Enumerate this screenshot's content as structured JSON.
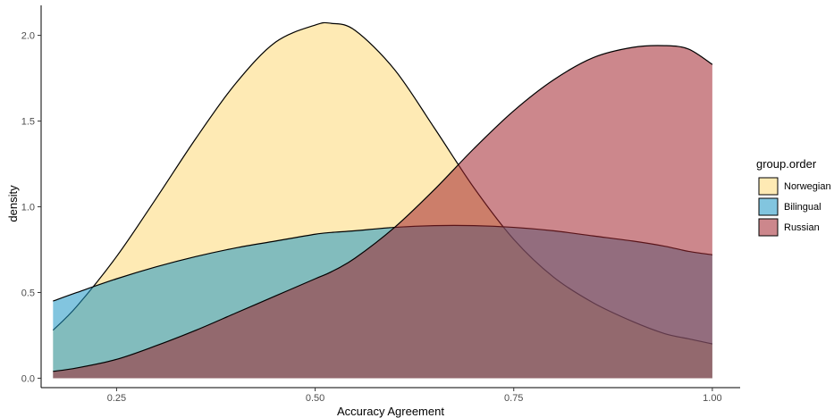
{
  "chart_data": {
    "type": "area",
    "subtype": "density",
    "xlabel": "Accuracy Agreement",
    "ylabel": "density",
    "xlim": [
      0.155,
      1.035
    ],
    "ylim": [
      -0.055,
      2.175
    ],
    "x_ticks": [
      0.25,
      0.5,
      0.75,
      1.0
    ],
    "x_tick_labels": [
      "0.25",
      "0.50",
      "0.75",
      "1.00"
    ],
    "y_ticks": [
      0.0,
      0.5,
      1.0,
      1.5,
      2.0
    ],
    "y_tick_labels": [
      "0.0",
      "0.5",
      "1.0",
      "1.5",
      "2.0"
    ],
    "grid": false,
    "legend": {
      "title": "group.order",
      "placement": "right",
      "entries": [
        "Norwegian",
        "Bilingual",
        "Russian"
      ]
    },
    "x": [
      0.17,
      0.2,
      0.25,
      0.3,
      0.35,
      0.4,
      0.45,
      0.5,
      0.52,
      0.55,
      0.6,
      0.65,
      0.7,
      0.75,
      0.8,
      0.85,
      0.9,
      0.94,
      0.97,
      1.0
    ],
    "series": [
      {
        "name": "Norwegian",
        "color": "#fed976",
        "values": [
          0.28,
          0.42,
          0.71,
          1.05,
          1.4,
          1.72,
          1.96,
          2.06,
          2.07,
          2.03,
          1.8,
          1.46,
          1.11,
          0.81,
          0.59,
          0.44,
          0.33,
          0.26,
          0.23,
          0.2
        ]
      },
      {
        "name": "Bilingual",
        "color": "#1b96c4",
        "values": [
          0.45,
          0.5,
          0.58,
          0.65,
          0.71,
          0.76,
          0.8,
          0.84,
          0.85,
          0.86,
          0.88,
          0.89,
          0.89,
          0.88,
          0.86,
          0.83,
          0.8,
          0.77,
          0.74,
          0.72
        ]
      },
      {
        "name": "Russian",
        "color": "#a3242e",
        "values": [
          0.04,
          0.06,
          0.11,
          0.19,
          0.28,
          0.38,
          0.48,
          0.58,
          0.62,
          0.7,
          0.88,
          1.1,
          1.34,
          1.56,
          1.74,
          1.87,
          1.93,
          1.94,
          1.92,
          1.83
        ]
      }
    ]
  }
}
